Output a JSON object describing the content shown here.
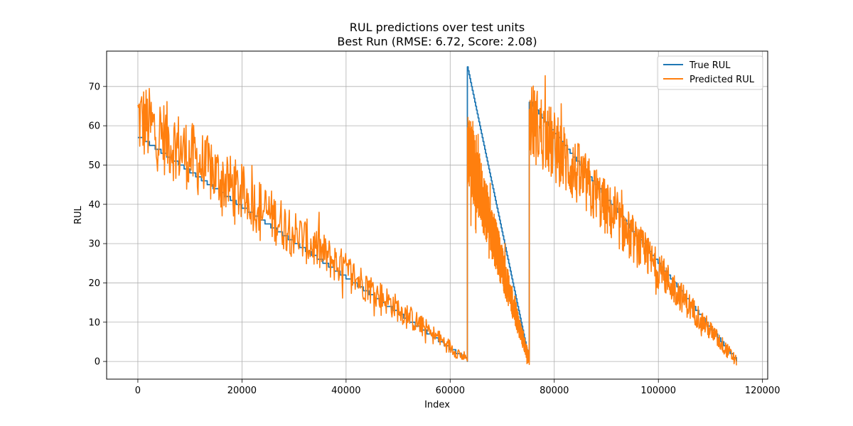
{
  "chart_data": {
    "type": "line",
    "title": "RUL predictions over test units",
    "subtitle": "Best Run (RMSE: 6.72, Score: 2.08)",
    "xlabel": "Index",
    "ylabel": "RUL",
    "xlim": [
      -6000,
      121000
    ],
    "ylim": [
      -4.5,
      79
    ],
    "xticks": [
      0,
      20000,
      40000,
      60000,
      80000,
      100000,
      120000
    ],
    "yticks": [
      0,
      10,
      20,
      30,
      40,
      50,
      60,
      70
    ],
    "grid": true,
    "legend_position": "top-right",
    "series": [
      {
        "name": "True RUL",
        "color": "#1f77b4",
        "segments": [
          {
            "x_start": 0,
            "x_end": 63300,
            "y_start": 57,
            "y_end": 0
          },
          {
            "x_start": 63300,
            "x_end": 75200,
            "y_start": 75,
            "y_end": 0
          },
          {
            "x_start": 75200,
            "x_end": 115000,
            "y_start": 66,
            "y_end": 0
          }
        ]
      },
      {
        "name": "Predicted RUL",
        "color": "#ff7f0e",
        "noisy": true,
        "segments": [
          {
            "x_start": 0,
            "x_end": 63300,
            "y_start": 62,
            "y_end": 0.5
          },
          {
            "x_start": 63300,
            "x_end": 75200,
            "y_start": 55,
            "y_end": 0
          },
          {
            "x_start": 75200,
            "x_end": 115000,
            "y_start": 62,
            "y_end": 0
          }
        ]
      }
    ]
  }
}
